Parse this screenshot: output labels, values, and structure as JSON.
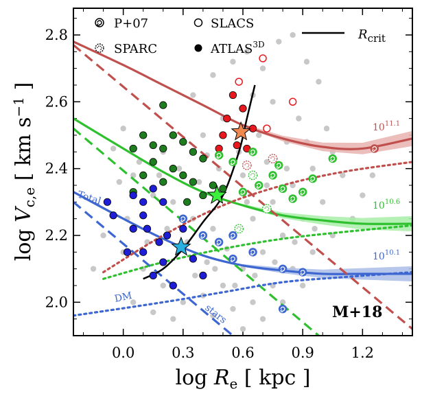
{
  "chart_data": {
    "type": "scatter",
    "xlabel": "log R_e [ kpc ]",
    "ylabel": "log V_c,e [ km s^-1 ]",
    "xlim": [
      -0.25,
      1.45
    ],
    "ylim": [
      1.9,
      2.88
    ],
    "xticks": [
      "0.0",
      "0.3",
      "0.6",
      "0.9",
      "1.2"
    ],
    "yticks": [
      "2.0",
      "2.2",
      "2.4",
      "2.6",
      "2.8"
    ],
    "tag": "M+18",
    "legend": {
      "p07": "P+07",
      "sparc": "SPARC",
      "slacs": "SLACS",
      "atlas": "ATLAS",
      "atlas_sup": "3D",
      "rcrit": "R",
      "rcrit_sub": "crit"
    },
    "curve_labels": {
      "total": "Total",
      "dm": "DM",
      "stars": "stars",
      "m_high": "10",
      "m_high_exp": "11.1",
      "m_mid": "10",
      "m_mid_exp": "10.6",
      "m_low": "10",
      "m_low_exp": "10.1"
    },
    "colors": {
      "high": "#c0504d",
      "mid": "#2fc02f",
      "low": "#3d66d1",
      "high_band": "#e8b3b0",
      "mid_band": "#a8eda8",
      "low_band": "#a9bde8",
      "background_points": "#c8c8c8",
      "atlas_high": "#e8181e",
      "atlas_mid": "#1e7d1e",
      "atlas_low": "#1e1ed6"
    },
    "series": [
      {
        "name": "Total 10^11.1",
        "color": "high",
        "style": "solid",
        "x": [
          -0.25,
          0.0,
          0.2,
          0.4,
          0.6,
          0.8,
          1.0,
          1.2,
          1.45
        ],
        "y": [
          2.78,
          2.71,
          2.65,
          2.59,
          2.53,
          2.49,
          2.465,
          2.46,
          2.49
        ]
      },
      {
        "name": "Total 10^10.6",
        "color": "mid",
        "style": "solid",
        "x": [
          -0.25,
          0.0,
          0.2,
          0.4,
          0.6,
          0.8,
          1.0,
          1.2,
          1.45
        ],
        "y": [
          2.55,
          2.46,
          2.39,
          2.33,
          2.29,
          2.26,
          2.245,
          2.235,
          2.235
        ]
      },
      {
        "name": "Total 10^10.1",
        "color": "low",
        "style": "solid",
        "x": [
          -0.25,
          0.0,
          0.2,
          0.4,
          0.6,
          0.8,
          1.0,
          1.2,
          1.45
        ],
        "y": [
          2.33,
          2.25,
          2.19,
          2.14,
          2.11,
          2.095,
          2.085,
          2.085,
          2.085
        ]
      },
      {
        "name": "Stars 10^11.1",
        "color": "high",
        "style": "dashed",
        "x": [
          -0.25,
          1.45
        ],
        "y": [
          2.77,
          1.92
        ]
      },
      {
        "name": "Stars 10^10.6",
        "color": "mid",
        "style": "dashed",
        "x": [
          -0.25,
          1.0
        ],
        "y": [
          2.52,
          1.89
        ]
      },
      {
        "name": "Stars 10^10.1",
        "color": "low",
        "style": "dashed",
        "x": [
          -0.25,
          0.55
        ],
        "y": [
          2.3,
          1.9
        ]
      },
      {
        "name": "DM 10^11.1",
        "color": "high",
        "style": "dotted",
        "x": [
          -0.1,
          0.2,
          0.5,
          0.8,
          1.1,
          1.45
        ],
        "y": [
          2.09,
          2.2,
          2.29,
          2.35,
          2.39,
          2.42
        ]
      },
      {
        "name": "DM 10^10.6",
        "color": "mid",
        "style": "dotted",
        "x": [
          -0.1,
          0.2,
          0.5,
          0.8,
          1.1,
          1.45
        ],
        "y": [
          2.07,
          2.12,
          2.16,
          2.19,
          2.21,
          2.23
        ]
      },
      {
        "name": "DM 10^10.1",
        "color": "low",
        "style": "dotted",
        "x": [
          -0.25,
          0.2,
          0.5,
          0.8,
          1.1,
          1.45
        ],
        "y": [
          1.96,
          2.0,
          2.03,
          2.06,
          2.075,
          2.09
        ]
      },
      {
        "name": "R_crit",
        "color": "black",
        "style": "solid",
        "x": [
          0.1,
          0.2,
          0.3,
          0.4,
          0.5,
          0.58,
          0.62,
          0.66
        ],
        "y": [
          2.07,
          2.1,
          2.16,
          2.24,
          2.32,
          2.45,
          2.55,
          2.65
        ]
      }
    ],
    "stars": [
      {
        "x": 0.29,
        "y": 2.165,
        "color": "#2ab0e0"
      },
      {
        "x": 0.47,
        "y": 2.32,
        "color": "#3ef03e"
      },
      {
        "x": 0.59,
        "y": 2.51,
        "color": "#f0894f"
      }
    ],
    "points_background": [
      [
        0.35,
        2.62
      ],
      [
        0.45,
        2.68
      ],
      [
        0.55,
        2.72
      ],
      [
        0.62,
        2.75
      ],
      [
        0.7,
        2.7
      ],
      [
        0.78,
        2.78
      ],
      [
        0.85,
        2.8
      ],
      [
        0.92,
        2.72
      ],
      [
        0.98,
        2.66
      ],
      [
        0.75,
        2.6
      ],
      [
        0.65,
        2.62
      ],
      [
        0.5,
        2.55
      ],
      [
        0.4,
        2.5
      ],
      [
        0.3,
        2.48
      ],
      [
        0.2,
        2.45
      ],
      [
        0.1,
        2.5
      ],
      [
        0.0,
        2.52
      ],
      [
        -0.05,
        2.46
      ],
      [
        0.05,
        2.38
      ],
      [
        0.15,
        2.32
      ],
      [
        0.25,
        2.3
      ],
      [
        0.35,
        2.25
      ],
      [
        0.45,
        2.22
      ],
      [
        0.55,
        2.2
      ],
      [
        0.65,
        2.25
      ],
      [
        0.75,
        2.3
      ],
      [
        0.85,
        2.35
      ],
      [
        0.95,
        2.4
      ],
      [
        1.05,
        2.45
      ],
      [
        1.1,
        2.38
      ],
      [
        1.0,
        2.3
      ],
      [
        0.9,
        2.25
      ],
      [
        0.8,
        2.2
      ],
      [
        0.7,
        2.15
      ],
      [
        0.6,
        2.1
      ],
      [
        0.5,
        2.05
      ],
      [
        0.4,
        2.02
      ],
      [
        0.3,
        2.0
      ],
      [
        0.2,
        2.05
      ],
      [
        0.1,
        2.1
      ],
      [
        0.0,
        2.15
      ],
      [
        -0.1,
        2.2
      ],
      [
        -0.15,
        2.1
      ],
      [
        0.05,
        2.0
      ],
      [
        0.15,
        1.97
      ],
      [
        0.25,
        1.95
      ],
      [
        0.45,
        1.96
      ],
      [
        0.55,
        1.98
      ],
      [
        0.65,
        2.0
      ],
      [
        0.75,
        2.05
      ],
      [
        0.85,
        2.1
      ],
      [
        0.95,
        2.15
      ],
      [
        1.05,
        2.2
      ],
      [
        1.15,
        2.25
      ],
      [
        1.2,
        2.32
      ],
      [
        1.25,
        2.38
      ],
      [
        0.88,
        2.55
      ],
      [
        0.82,
        2.48
      ],
      [
        0.72,
        2.42
      ],
      [
        0.6,
        2.38
      ],
      [
        0.48,
        2.4
      ],
      [
        0.38,
        2.36
      ],
      [
        0.28,
        2.4
      ],
      [
        0.18,
        2.38
      ],
      [
        0.08,
        2.42
      ],
      [
        -0.02,
        2.36
      ],
      [
        0.32,
        2.18
      ],
      [
        0.42,
        2.12
      ],
      [
        0.52,
        2.16
      ],
      [
        0.62,
        2.3
      ],
      [
        0.72,
        2.35
      ],
      [
        0.82,
        2.4
      ],
      [
        0.92,
        2.48
      ],
      [
        1.02,
        2.52
      ],
      [
        0.68,
        2.5
      ],
      [
        0.58,
        2.45
      ],
      [
        0.42,
        2.44
      ],
      [
        0.22,
        2.22
      ],
      [
        0.12,
        2.18
      ],
      [
        0.02,
        2.25
      ],
      [
        0.36,
        2.08
      ],
      [
        0.46,
        2.1
      ],
      [
        0.56,
        2.05
      ],
      [
        0.66,
        2.08
      ],
      [
        0.76,
        2.12
      ],
      [
        0.86,
        2.18
      ],
      [
        0.96,
        2.22
      ],
      [
        0.8,
        2.0
      ],
      [
        0.7,
        1.95
      ],
      [
        0.6,
        1.92
      ],
      [
        0.9,
        2.05
      ]
    ],
    "points_atlas": [
      {
        "x": 0.55,
        "y": 2.62,
        "color": "atlas_high"
      },
      {
        "x": 0.6,
        "y": 2.58,
        "color": "atlas_high"
      },
      {
        "x": 0.52,
        "y": 2.55,
        "color": "atlas_high"
      },
      {
        "x": 0.5,
        "y": 2.5,
        "color": "atlas_high"
      },
      {
        "x": 0.65,
        "y": 2.52,
        "color": "atlas_high"
      },
      {
        "x": 0.57,
        "y": 2.47,
        "color": "atlas_high"
      },
      {
        "x": 0.62,
        "y": 2.46,
        "color": "atlas_high"
      },
      {
        "x": 0.48,
        "y": 2.46,
        "color": "atlas_high"
      },
      {
        "x": 0.2,
        "y": 2.59,
        "color": "atlas_mid"
      },
      {
        "x": 0.1,
        "y": 2.5,
        "color": "atlas_mid"
      },
      {
        "x": 0.15,
        "y": 2.47,
        "color": "atlas_mid"
      },
      {
        "x": 0.05,
        "y": 2.46,
        "color": "atlas_mid"
      },
      {
        "x": 0.2,
        "y": 2.46,
        "color": "atlas_mid"
      },
      {
        "x": 0.25,
        "y": 2.5,
        "color": "atlas_mid"
      },
      {
        "x": 0.3,
        "y": 2.48,
        "color": "atlas_mid"
      },
      {
        "x": 0.35,
        "y": 2.45,
        "color": "atlas_mid"
      },
      {
        "x": 0.4,
        "y": 2.43,
        "color": "atlas_mid"
      },
      {
        "x": 0.15,
        "y": 2.42,
        "color": "atlas_mid"
      },
      {
        "x": 0.25,
        "y": 2.4,
        "color": "atlas_mid"
      },
      {
        "x": 0.3,
        "y": 2.38,
        "color": "atlas_mid"
      },
      {
        "x": 0.35,
        "y": 2.36,
        "color": "atlas_mid"
      },
      {
        "x": 0.45,
        "y": 2.35,
        "color": "atlas_mid"
      },
      {
        "x": 0.2,
        "y": 2.36,
        "color": "atlas_mid"
      },
      {
        "x": 0.1,
        "y": 2.38,
        "color": "atlas_mid"
      },
      {
        "x": 0.5,
        "y": 2.34,
        "color": "atlas_mid"
      },
      {
        "x": 0.4,
        "y": 2.32,
        "color": "atlas_mid"
      },
      {
        "x": 0.05,
        "y": 2.33,
        "color": "atlas_mid"
      },
      {
        "x": 0.32,
        "y": 2.3,
        "color": "atlas_mid"
      },
      {
        "x": -0.08,
        "y": 2.3,
        "color": "atlas_low"
      },
      {
        "x": 0.05,
        "y": 2.32,
        "color": "atlas_low"
      },
      {
        "x": 0.1,
        "y": 2.3,
        "color": "atlas_low"
      },
      {
        "x": 0.15,
        "y": 2.34,
        "color": "atlas_low"
      },
      {
        "x": 0.2,
        "y": 2.3,
        "color": "atlas_low"
      },
      {
        "x": 0.1,
        "y": 2.26,
        "color": "atlas_low"
      },
      {
        "x": -0.05,
        "y": 2.26,
        "color": "atlas_low"
      },
      {
        "x": 0.05,
        "y": 2.22,
        "color": "atlas_low"
      },
      {
        "x": 0.12,
        "y": 2.22,
        "color": "atlas_low"
      },
      {
        "x": 0.18,
        "y": 2.18,
        "color": "atlas_low"
      },
      {
        "x": 0.22,
        "y": 2.2,
        "color": "atlas_low"
      },
      {
        "x": 0.3,
        "y": 2.22,
        "color": "atlas_low"
      },
      {
        "x": 0.1,
        "y": 2.15,
        "color": "atlas_low"
      },
      {
        "x": 0.2,
        "y": 2.12,
        "color": "atlas_low"
      },
      {
        "x": 0.15,
        "y": 2.08,
        "color": "atlas_low"
      },
      {
        "x": 0.25,
        "y": 2.05,
        "color": "atlas_low"
      },
      {
        "x": 0.02,
        "y": 2.15,
        "color": "atlas_low"
      },
      {
        "x": 0.35,
        "y": 2.13,
        "color": "atlas_low"
      },
      {
        "x": 0.4,
        "y": 2.08,
        "color": "atlas_low"
      }
    ],
    "points_slacs": [
      {
        "x": 0.7,
        "y": 2.73,
        "color": "atlas_high"
      },
      {
        "x": 0.58,
        "y": 2.66,
        "color": "atlas_high"
      },
      {
        "x": 0.85,
        "y": 2.6,
        "color": "atlas_high"
      },
      {
        "x": 0.72,
        "y": 2.52,
        "color": "atlas_high"
      }
    ],
    "points_p07": [
      {
        "x": 0.48,
        "y": 2.44,
        "color": "mid"
      },
      {
        "x": 0.55,
        "y": 2.42,
        "color": "mid"
      },
      {
        "x": 0.65,
        "y": 2.45,
        "color": "mid"
      },
      {
        "x": 0.75,
        "y": 2.38,
        "color": "mid"
      },
      {
        "x": 0.8,
        "y": 2.34,
        "color": "mid"
      },
      {
        "x": 0.85,
        "y": 2.31,
        "color": "mid"
      },
      {
        "x": 0.9,
        "y": 2.33,
        "color": "mid"
      },
      {
        "x": 0.95,
        "y": 2.37,
        "color": "mid"
      },
      {
        "x": 1.05,
        "y": 2.43,
        "color": "mid"
      },
      {
        "x": 0.68,
        "y": 2.35,
        "color": "mid"
      },
      {
        "x": 0.6,
        "y": 2.33,
        "color": "mid"
      },
      {
        "x": 0.78,
        "y": 2.41,
        "color": "mid"
      },
      {
        "x": 0.3,
        "y": 2.25,
        "color": "low"
      },
      {
        "x": 0.4,
        "y": 2.2,
        "color": "low"
      },
      {
        "x": 0.48,
        "y": 2.18,
        "color": "low"
      },
      {
        "x": 0.55,
        "y": 2.2,
        "color": "low"
      },
      {
        "x": 0.65,
        "y": 2.15,
        "color": "low"
      },
      {
        "x": 0.55,
        "y": 2.13,
        "color": "low"
      },
      {
        "x": 0.8,
        "y": 2.1,
        "color": "low"
      },
      {
        "x": 0.9,
        "y": 2.09,
        "color": "low"
      },
      {
        "x": 0.8,
        "y": 1.98,
        "color": "low"
      },
      {
        "x": 1.26,
        "y": 2.46,
        "color": "high"
      }
    ],
    "points_sparc": [
      {
        "x": 0.65,
        "y": 2.38,
        "color": "mid"
      },
      {
        "x": 0.72,
        "y": 2.28,
        "color": "mid"
      },
      {
        "x": 0.58,
        "y": 2.22,
        "color": "mid"
      },
      {
        "x": 0.62,
        "y": 2.41,
        "color": "high"
      },
      {
        "x": 0.75,
        "y": 2.43,
        "color": "high"
      }
    ]
  }
}
